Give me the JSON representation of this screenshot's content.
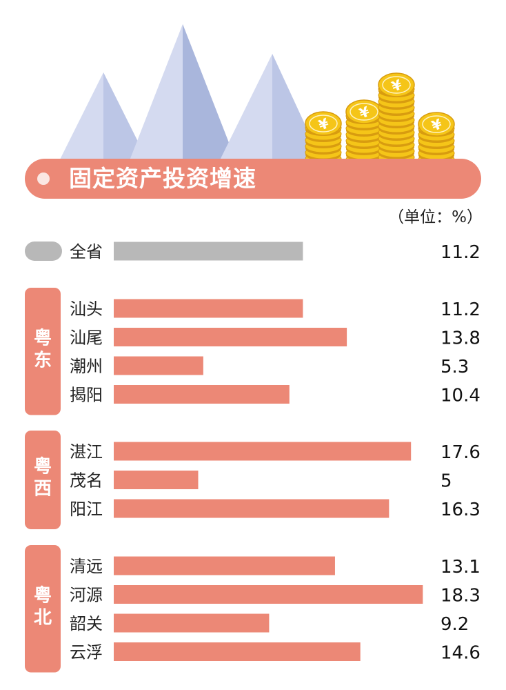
{
  "title": "固定资产投资增速",
  "unit": "（单位：%）",
  "colors": {
    "accent": "#ec8876",
    "total_bar": "#b8b8b8",
    "bar": "#ec8876",
    "mountain_light": "#d4daf0",
    "mountain_dark": "#a9b6dc",
    "coin": "#f5c518",
    "coin_dark": "#d89c10"
  },
  "icons": [
    "mountains-illustration",
    "coin-stack-icon",
    "yen-symbol-icon"
  ],
  "coin_symbol": "¥",
  "chart_data": {
    "type": "bar",
    "orientation": "horizontal",
    "title": "固定资产投资增速",
    "unit": "（单位：%）",
    "xlim": [
      0,
      20
    ],
    "grid": false,
    "total": {
      "name": "全省",
      "value": 11.2,
      "label": "11.2"
    },
    "groups": [
      {
        "name": "粤东",
        "items": [
          {
            "name": "汕头",
            "value": 11.2,
            "label": "11.2"
          },
          {
            "name": "汕尾",
            "value": 13.8,
            "label": "13.8"
          },
          {
            "name": "潮州",
            "value": 5.3,
            "label": "5.3"
          },
          {
            "name": "揭阳",
            "value": 10.4,
            "label": "10.4"
          }
        ]
      },
      {
        "name": "粤西",
        "items": [
          {
            "name": "湛江",
            "value": 17.6,
            "label": "17.6"
          },
          {
            "name": "茂名",
            "value": 5,
            "label": "5"
          },
          {
            "name": "阳江",
            "value": 16.3,
            "label": "16.3"
          }
        ]
      },
      {
        "name": "粤北",
        "items": [
          {
            "name": "清远",
            "value": 13.1,
            "label": "13.1"
          },
          {
            "name": "河源",
            "value": 18.3,
            "label": "18.3"
          },
          {
            "name": "韶关",
            "value": 9.2,
            "label": "9.2"
          },
          {
            "name": "云浮",
            "value": 14.6,
            "label": "14.6"
          }
        ]
      }
    ]
  }
}
